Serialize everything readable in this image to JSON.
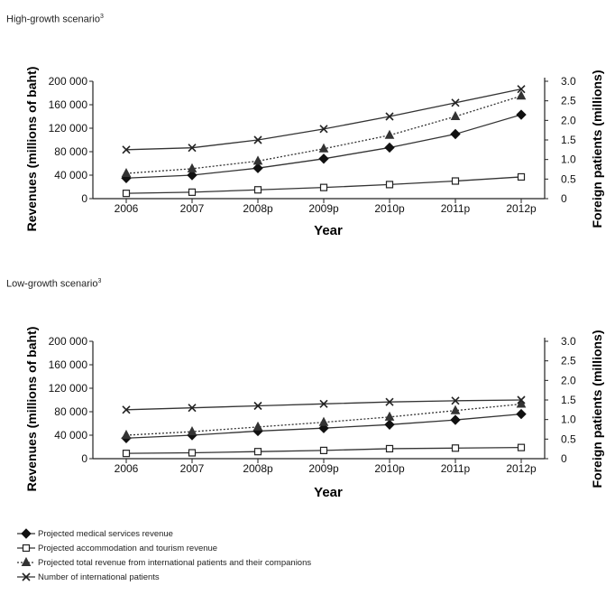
{
  "chart_data": [
    {
      "type": "line",
      "title": "High-growth scenario",
      "title_note": "3",
      "xlabel": "Year",
      "ylabel": "Revenues (millions of baht)",
      "y2label": "Foreign patients (millions)",
      "categories": [
        "2006",
        "2007",
        "2008p",
        "2009p",
        "2010p",
        "2011p",
        "2012p"
      ],
      "ylim": [
        0,
        200000
      ],
      "yticks": [
        "0",
        "40 000",
        "80 000",
        "120 000",
        "160 000",
        "200 000"
      ],
      "y2lim": [
        0,
        3.0
      ],
      "y2ticks": [
        "0",
        "0.5",
        "1.0",
        "1.5",
        "2.0",
        "2.5",
        "3.0"
      ],
      "grid": false,
      "series": [
        {
          "name": "Projected medical services revenue",
          "axis": "left",
          "marker": "diamond",
          "dash": "solid",
          "values": [
            35000,
            40000,
            52000,
            68000,
            87000,
            110000,
            143000
          ]
        },
        {
          "name": "Projected accommodation and tourism revenue",
          "axis": "left",
          "marker": "square-open",
          "dash": "solid",
          "values": [
            9000,
            11000,
            15000,
            19000,
            24000,
            30000,
            37000
          ]
        },
        {
          "name": "Projected total revenue from international patients and their companions",
          "axis": "left",
          "marker": "triangle",
          "dash": "dotted",
          "values": [
            43000,
            51000,
            64000,
            85000,
            108000,
            140000,
            175000
          ]
        },
        {
          "name": "Number of international patients",
          "axis": "right",
          "marker": "x",
          "dash": "solid",
          "values": [
            1.25,
            1.3,
            1.5,
            1.78,
            2.1,
            2.45,
            2.8
          ]
        }
      ]
    },
    {
      "type": "line",
      "title": "Low-growth scenario",
      "title_note": "3",
      "xlabel": "Year",
      "ylabel": "Revenues (millions of baht)",
      "y2label": "Foreign patients (millions)",
      "categories": [
        "2006",
        "2007",
        "2008p",
        "2009p",
        "2010p",
        "2011p",
        "2012p"
      ],
      "ylim": [
        0,
        200000
      ],
      "yticks": [
        "0",
        "40 000",
        "80 000",
        "120 000",
        "160 000",
        "200 000"
      ],
      "y2lim": [
        0,
        3.0
      ],
      "y2ticks": [
        "0",
        "0.5",
        "1.0",
        "1.5",
        "2.0",
        "2.5",
        "3.0"
      ],
      "grid": false,
      "series": [
        {
          "name": "Projected medical services revenue",
          "axis": "left",
          "marker": "diamond",
          "dash": "solid",
          "values": [
            35000,
            40000,
            47000,
            52000,
            58000,
            66000,
            76000
          ]
        },
        {
          "name": "Projected accommodation and tourism revenue",
          "axis": "left",
          "marker": "square-open",
          "dash": "solid",
          "values": [
            9000,
            10000,
            12000,
            14000,
            17000,
            18000,
            19000
          ]
        },
        {
          "name": "Projected total revenue from international patients and their companions",
          "axis": "left",
          "marker": "triangle",
          "dash": "dotted",
          "values": [
            40000,
            46000,
            54000,
            62000,
            71000,
            82000,
            93000
          ]
        },
        {
          "name": "Number of international patients",
          "axis": "right",
          "marker": "x",
          "dash": "solid",
          "values": [
            1.25,
            1.3,
            1.35,
            1.4,
            1.45,
            1.48,
            1.5
          ]
        }
      ]
    }
  ],
  "legend": [
    {
      "label": "Projected medical services revenue",
      "marker": "diamond",
      "dash": "solid"
    },
    {
      "label": "Projected accommodation and tourism revenue",
      "marker": "square-open",
      "dash": "solid"
    },
    {
      "label": "Projected total revenue from international patients and their companions",
      "marker": "triangle",
      "dash": "dotted"
    },
    {
      "label": "Number of international patients",
      "marker": "x",
      "dash": "solid"
    }
  ]
}
